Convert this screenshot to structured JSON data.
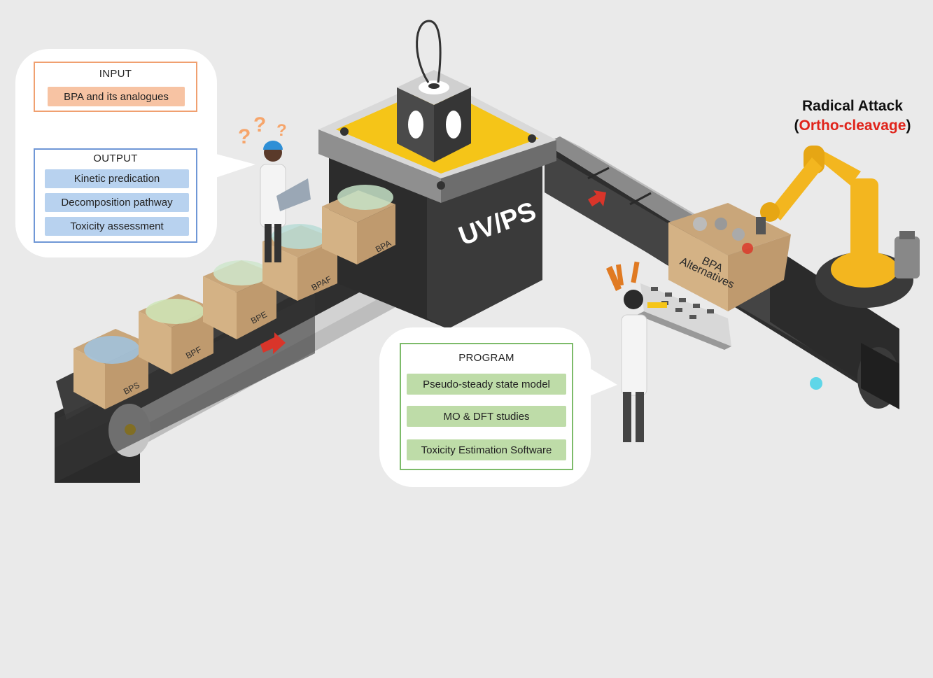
{
  "input_panel": {
    "header": "INPUT",
    "item": "BPA and its analogues"
  },
  "output_panel": {
    "header": "OUTPUT",
    "items": [
      "Kinetic predication",
      "Decomposition pathway",
      "Toxicity assessment"
    ]
  },
  "program_panel": {
    "header": "PROGRAM",
    "items": [
      "Pseudo-steady state model",
      "MO & DFT studies",
      "Toxicity Estimation Software"
    ]
  },
  "reactor": {
    "label": "UV/PS"
  },
  "boxes": [
    "BPS",
    "BPF",
    "BPE",
    "BPAF",
    "BPA"
  ],
  "output_box": {
    "line1": "BPA",
    "line2": "Alternatives"
  },
  "radical_attack": {
    "title": "Radical Attack",
    "open_paren": "(",
    "subtitle": "Ortho-cleavage",
    "close_paren": ")"
  },
  "colors": {
    "input_border": "#f0a070",
    "input_fill": "#f7c3a3",
    "output_border": "#6f97d6",
    "output_fill": "#b8d2ef",
    "program_border": "#7dbb6a",
    "program_fill": "#bedca8",
    "accent_red": "#e0241b",
    "robot_yellow": "#f3b61f",
    "reactor_yellow": "#f5c518",
    "belt_dark": "#3b3b3b"
  }
}
